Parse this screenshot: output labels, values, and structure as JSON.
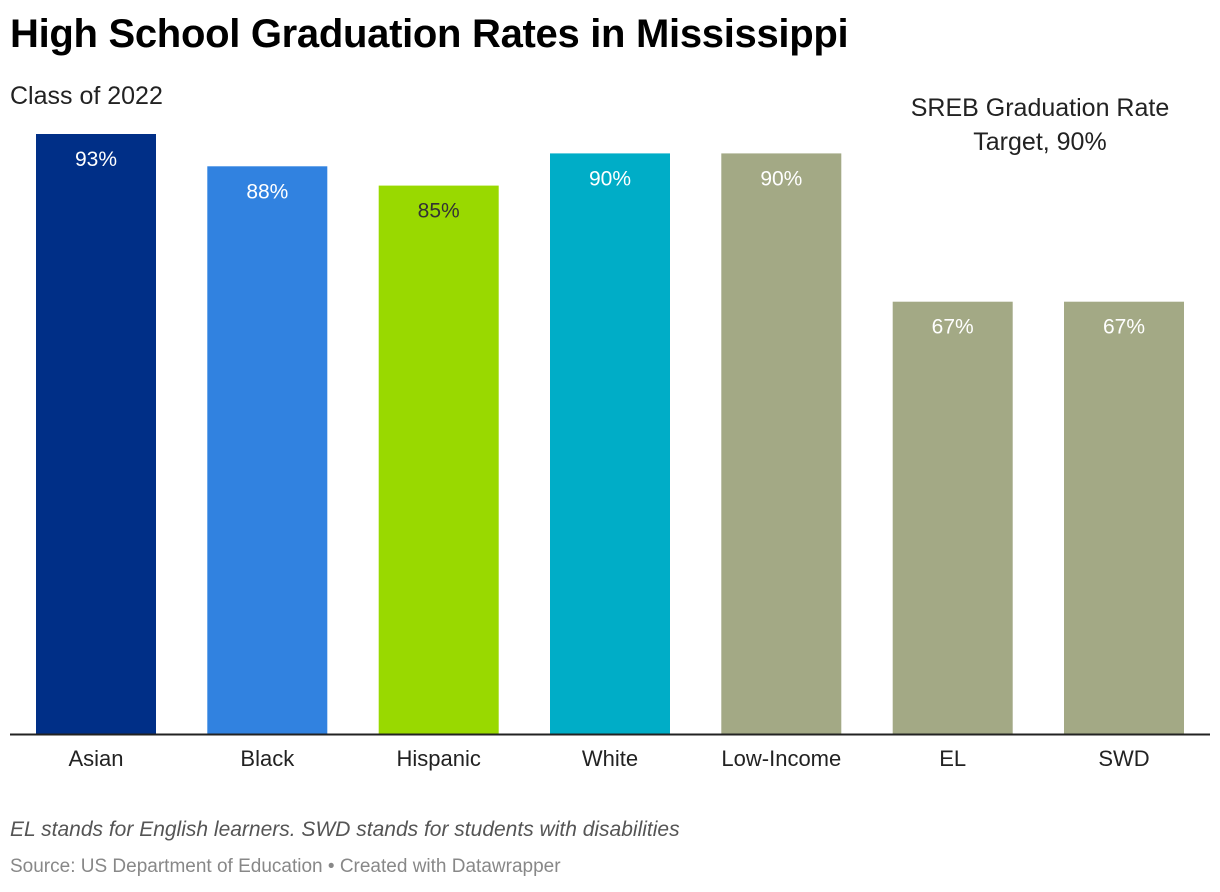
{
  "title": "High School Graduation Rates in Mississippi",
  "subtitle": "Class of 2022",
  "annotation": {
    "line1": "SREB Graduation Rate",
    "line2": "Target, 90%"
  },
  "note": "EL stands for English learners. SWD stands for students with disabilities",
  "source": "Source: US Department of Education • Created with Datawrapper",
  "chart_data": {
    "type": "bar",
    "title": "High School Graduation Rates in Mississippi",
    "subtitle": "Class of 2022",
    "categories": [
      "Asian",
      "Black",
      "Hispanic",
      "White",
      "Low-Income",
      "EL",
      "SWD"
    ],
    "values": [
      93,
      88,
      85,
      90,
      90,
      67,
      67
    ],
    "value_labels": [
      "93%",
      "88%",
      "85%",
      "90%",
      "90%",
      "67%",
      "67%"
    ],
    "colors": [
      "#002f87",
      "#3182e0",
      "#99d900",
      "#00adc7",
      "#a3a985",
      "#a3a985",
      "#a3a985"
    ],
    "label_colors": [
      "#ffffff",
      "#ffffff",
      "#333333",
      "#ffffff",
      "#ffffff",
      "#ffffff",
      "#ffffff"
    ],
    "ylim": [
      0,
      93
    ],
    "grid": false,
    "legend": "none",
    "xlabel": "",
    "ylabel": ""
  }
}
